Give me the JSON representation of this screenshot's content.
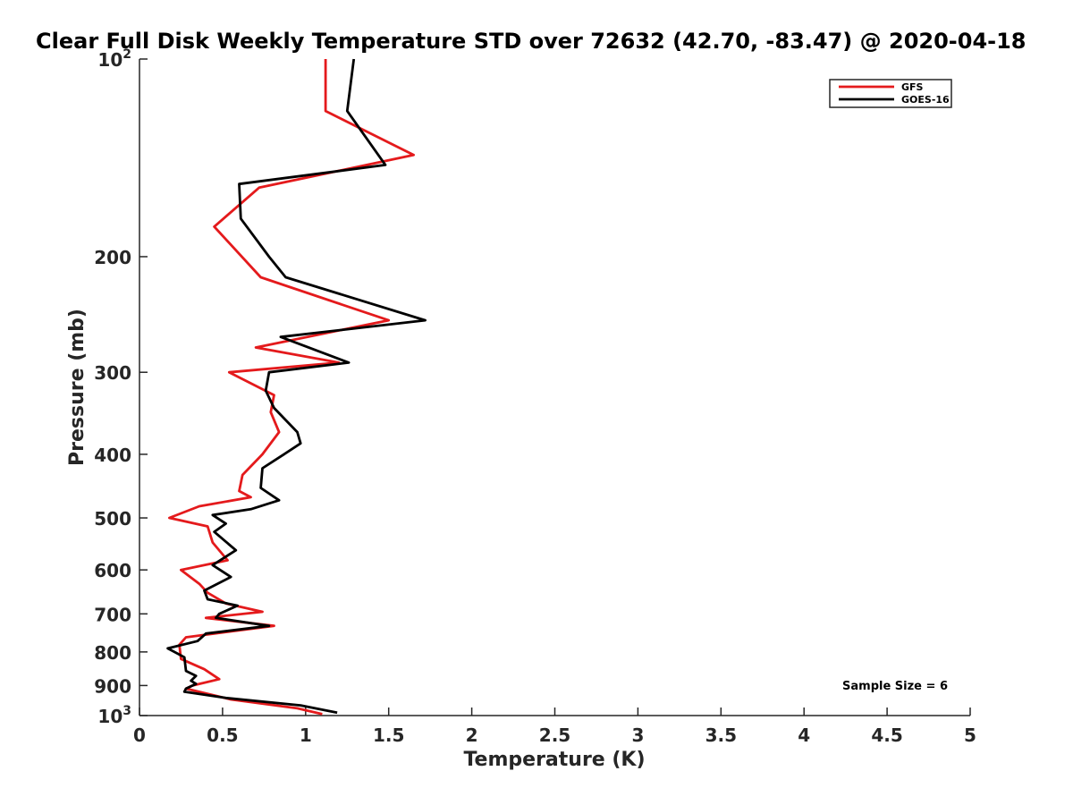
{
  "chart_data": {
    "type": "line",
    "title": "Clear Full Disk Weekly Temperature STD over 72632 (42.70, -83.47) @ 2020-04-18",
    "xlabel": "Temperature (K)",
    "ylabel": "Pressure (mb)",
    "xlim": [
      0,
      5
    ],
    "ylim": [
      1000,
      100
    ],
    "y_scale": "log",
    "y_reversed": true,
    "grid": false,
    "legend_position": "top-right",
    "x_ticks": [
      0,
      0.5,
      1,
      1.5,
      2,
      2.5,
      3,
      3.5,
      4,
      4.5,
      5
    ],
    "x_tick_labels": [
      "0",
      "0.5",
      "1",
      "1.5",
      "2",
      "2.5",
      "3",
      "3.5",
      "4",
      "4.5",
      "5"
    ],
    "y_ticks": [
      {
        "value": 100,
        "base": "10",
        "exp": "2"
      },
      {
        "value": 200,
        "label": "200"
      },
      {
        "value": 300,
        "label": "300"
      },
      {
        "value": 400,
        "label": "400"
      },
      {
        "value": 500,
        "label": "500"
      },
      {
        "value": 600,
        "label": "600"
      },
      {
        "value": 700,
        "label": "700"
      },
      {
        "value": 800,
        "label": "800"
      },
      {
        "value": 900,
        "label": "900"
      },
      {
        "value": 1000,
        "base": "10",
        "exp": "3"
      }
    ],
    "annotation": "Sample Size = 6",
    "series": [
      {
        "name": "GFS",
        "color": "#e41a1c",
        "x": [
          1.12,
          1.12,
          1.65,
          0.72,
          0.45,
          0.73,
          1.5,
          0.7,
          1.2,
          0.54,
          0.81,
          0.79,
          0.84,
          0.74,
          0.62,
          0.6,
          0.67,
          0.36,
          0.18,
          0.41,
          0.44,
          0.53,
          0.25,
          0.36,
          0.41,
          0.52,
          0.74,
          0.4,
          0.81,
          0.28,
          0.24,
          0.25,
          0.39,
          0.48,
          0.32,
          0.28,
          0.55,
          0.95,
          1.1
        ],
        "y": [
          100,
          120,
          140,
          157,
          180,
          215,
          250,
          275,
          290,
          300,
          325,
          345,
          370,
          400,
          430,
          455,
          465,
          480,
          500,
          515,
          545,
          580,
          600,
          630,
          650,
          675,
          695,
          710,
          730,
          760,
          780,
          820,
          850,
          880,
          900,
          910,
          945,
          975,
          995
        ]
      },
      {
        "name": "GOES-16",
        "color": "#000000",
        "x": [
          1.29,
          1.25,
          1.48,
          0.6,
          0.61,
          0.78,
          0.88,
          1.72,
          0.85,
          1.26,
          0.78,
          0.76,
          0.81,
          0.95,
          0.97,
          0.87,
          0.74,
          0.73,
          0.84,
          0.67,
          0.44,
          0.52,
          0.45,
          0.58,
          0.44,
          0.55,
          0.39,
          0.41,
          0.59,
          0.48,
          0.46,
          0.78,
          0.4,
          0.35,
          0.17,
          0.27,
          0.28,
          0.34,
          0.31,
          0.34,
          0.28,
          0.27,
          0.52,
          0.97,
          1.19
        ],
        "y": [
          100,
          120,
          145,
          155,
          175,
          200,
          215,
          250,
          265,
          290,
          300,
          320,
          340,
          370,
          385,
          400,
          420,
          450,
          470,
          485,
          495,
          510,
          525,
          560,
          590,
          615,
          645,
          665,
          680,
          700,
          710,
          730,
          750,
          770,
          790,
          815,
          855,
          870,
          885,
          895,
          910,
          920,
          940,
          965,
          990
        ]
      }
    ]
  }
}
